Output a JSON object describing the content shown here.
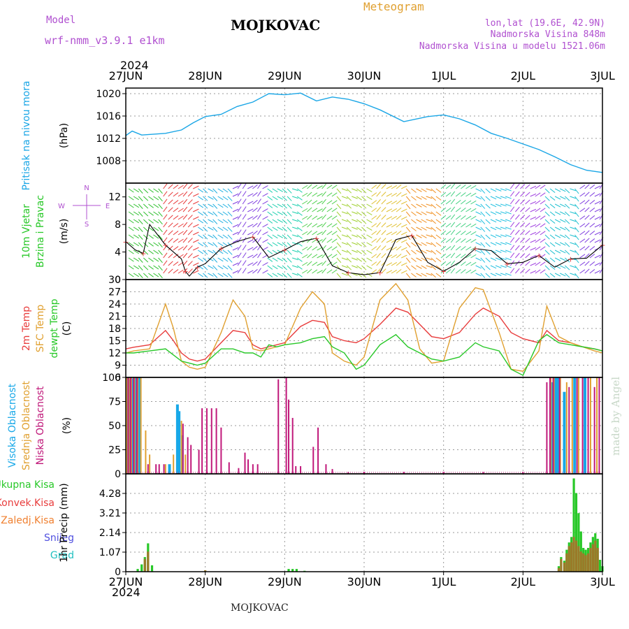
{
  "header": {
    "model_label": "Model",
    "model_value": "wrf-nmm_v3.9.1 e1km",
    "station": "MOJKOVAC",
    "title": "Meteogram",
    "coords": "lon,lat (19.6E, 42.9N)",
    "elevation": "Nadmorska Visina 848m",
    "model_elevation": "Nadmorska Visina u modelu 1521.06m",
    "year": "2024",
    "footer_station": "MOJKOVAC",
    "credit": "made by Angel"
  },
  "colors": {
    "pressure": "#1aa6e6",
    "temp2m": "#e83c3c",
    "sfc": "#e0a030",
    "dewpt": "#28c828",
    "high_cloud": "#18a8e8",
    "mid_cloud": "#e0a030",
    "low_cloud": "#c0187a",
    "total_precip": "#28c828",
    "convective": "#e83c3c",
    "freezing": "#f08030",
    "snow": "#5050e0",
    "hail": "#20c0c0",
    "purple": "#b050d0"
  },
  "chart_data": [
    {
      "type": "line",
      "panel": "pressure",
      "xlabels": [
        "27JUN",
        "28JUN",
        "29JUN",
        "30JUN",
        "1JUL",
        "2JUL",
        "3JUL"
      ],
      "ylabel_lines": [
        "Pritisak na nivou mora",
        "(hPa)"
      ],
      "ylim": [
        1004,
        1021
      ],
      "yticks": [
        "1008",
        "1012",
        "1016",
        "1020"
      ],
      "ytick_values": [
        1008,
        1012,
        1016,
        1020
      ],
      "series": [
        {
          "x": [
            0,
            0.08,
            0.2,
            0.5,
            0.7,
            0.85,
            1.0,
            1.2,
            1.4,
            1.6,
            1.8,
            2.0,
            2.2,
            2.4,
            2.6,
            2.8,
            3.0,
            3.2,
            3.5,
            3.8,
            4.0,
            4.2,
            4.4,
            4.6,
            4.8,
            5.0,
            5.2,
            5.4,
            5.6,
            5.8,
            6.0
          ],
          "values": [
            1012.5,
            1013.3,
            1012.6,
            1012.9,
            1013.5,
            1014.8,
            1015.9,
            1016.3,
            1017.7,
            1018.5,
            1020.0,
            1019.8,
            1020.1,
            1018.7,
            1019.4,
            1019.0,
            1018.2,
            1017.1,
            1015.0,
            1015.9,
            1016.2,
            1015.5,
            1014.4,
            1012.9,
            1012.0,
            1011.0,
            1010.0,
            1008.7,
            1007.3,
            1006.3,
            1005.9
          ]
        }
      ]
    },
    {
      "type": "line",
      "panel": "wind",
      "ylabel_lines": [
        "10m Vjetar",
        "Brzina i Pravac",
        "(m/s)"
      ],
      "compass": [
        "N",
        "E",
        "S",
        "W"
      ],
      "ylim": [
        0,
        14
      ],
      "yticks": [
        "0",
        "4",
        "8",
        "12"
      ],
      "ytick_values": [
        0,
        4,
        8,
        12
      ],
      "wind_colors": [
        "#30c030",
        "#e83c3c",
        "#20b0e0",
        "#8040e0",
        "#20d0b0",
        "#50d050",
        "#a0d030",
        "#e0c030",
        "#f09020",
        "#40d080",
        "#20c0e0",
        "#a040e0",
        "#20c0d0",
        "#8040e0"
      ],
      "series": [
        {
          "name": "speed",
          "values_x": [
            0,
            0.12,
            0.22,
            0.3,
            0.5,
            0.7,
            0.75,
            0.8,
            0.9,
            1.0,
            1.2,
            1.4,
            1.6,
            1.8,
            2.0,
            2.2,
            2.4,
            2.6,
            2.8,
            3.0,
            3.2,
            3.4,
            3.6,
            3.8,
            4.0,
            4.2,
            4.4,
            4.6,
            4.8,
            5.0,
            5.2,
            5.4,
            5.6,
            5.8,
            6.0
          ],
          "values": [
            5.5,
            4.3,
            3.8,
            8.0,
            5.0,
            3.0,
            1.2,
            0.5,
            1.8,
            2.3,
            4.5,
            5.5,
            6.2,
            3.2,
            4.3,
            5.5,
            6.0,
            2.0,
            1.0,
            0.7,
            1.0,
            5.8,
            6.4,
            2.5,
            1.2,
            2.5,
            4.5,
            4.2,
            2.3,
            2.5,
            3.5,
            1.8,
            3.0,
            3.1,
            5.0
          ]
        }
      ]
    },
    {
      "type": "line",
      "panel": "temperature",
      "ylabel_lines": [
        "2m Temp",
        "SFC Temp",
        "dewpt Temp",
        "(C)"
      ],
      "ylim": [
        6,
        30
      ],
      "yticks": [
        "6",
        "9",
        "12",
        "15",
        "18",
        "21",
        "24",
        "27",
        "30"
      ],
      "ytick_values": [
        6,
        9,
        12,
        15,
        18,
        21,
        24,
        27,
        30
      ],
      "x": [
        0,
        0.1,
        0.3,
        0.5,
        0.6,
        0.7,
        0.8,
        0.9,
        1.0,
        1.2,
        1.35,
        1.5,
        1.6,
        1.7,
        1.8,
        1.9,
        2.0,
        2.2,
        2.35,
        2.5,
        2.6,
        2.75,
        2.9,
        3.0,
        3.2,
        3.4,
        3.55,
        3.7,
        3.85,
        4.0,
        4.2,
        4.4,
        4.5,
        4.7,
        4.85,
        5.0,
        5.2,
        5.3,
        5.45,
        5.6,
        5.75,
        5.9,
        6.0
      ],
      "series": [
        {
          "name": "2m",
          "values": [
            13,
            13.4,
            14,
            17.5,
            15,
            12,
            10.5,
            10,
            10.5,
            14.5,
            17.5,
            17,
            14,
            13,
            13.5,
            14,
            14.5,
            18.5,
            20,
            19.5,
            16,
            15,
            14.5,
            15.5,
            19,
            23,
            22,
            19,
            16,
            15.5,
            17,
            21.5,
            23,
            21,
            17,
            15.5,
            14.5,
            17.5,
            15,
            14.5,
            13.5,
            13,
            12.5
          ]
        },
        {
          "name": "sfc",
          "values": [
            12,
            12.5,
            13,
            24,
            18,
            10,
            8.5,
            8,
            8.5,
            17,
            25,
            21,
            13,
            12.5,
            13,
            13.5,
            14,
            23,
            27,
            24,
            12,
            10,
            9,
            11,
            25,
            29,
            25,
            13,
            9.5,
            10,
            23,
            28,
            27.5,
            17,
            8,
            7.5,
            12.5,
            23.5,
            16,
            14.5,
            13.5,
            12.5,
            12
          ]
        },
        {
          "name": "dewpt",
          "values": [
            12,
            12,
            12.5,
            13,
            11.5,
            10,
            9.5,
            9,
            9.5,
            13,
            13,
            12,
            12,
            11,
            14,
            13.5,
            14,
            14.5,
            15.5,
            16,
            13.5,
            12,
            8,
            9,
            14,
            16.5,
            13.5,
            12,
            10.5,
            10,
            11,
            14.5,
            13.5,
            12.5,
            8,
            6.5,
            15,
            16.5,
            14.5,
            14,
            13.5,
            13,
            12.5
          ]
        }
      ]
    },
    {
      "type": "bar",
      "panel": "cloud",
      "ylabel_lines": [
        "Visoka Oblacnost",
        "Srednja Oblacnost",
        "Niska Oblacnost",
        "(%)"
      ],
      "ylim": [
        0,
        100
      ],
      "yticks": [
        "0",
        "25",
        "50",
        "75",
        "100"
      ],
      "ytick_values": [
        0,
        25,
        50,
        75,
        100
      ],
      "series": [
        {
          "name": "high",
          "x": [
            0.02,
            0.05,
            0.09,
            0.13,
            0.17,
            0.55,
            0.65,
            0.67,
            0.71,
            5.37,
            5.41,
            5.44,
            5.52,
            5.65,
            5.78
          ],
          "values": [
            100,
            98,
            99,
            100,
            100,
            10,
            72,
            65,
            40,
            95,
            100,
            100,
            85,
            100,
            100
          ]
        },
        {
          "name": "mid",
          "x": [
            0.01,
            0.04,
            0.07,
            0.11,
            0.15,
            0.19,
            0.25,
            0.3,
            0.5,
            0.6,
            0.7,
            0.75,
            5.35,
            5.39,
            5.47,
            5.55,
            5.62,
            5.7,
            5.85,
            5.93
          ],
          "values": [
            100,
            100,
            100,
            100,
            100,
            100,
            45,
            20,
            10,
            20,
            55,
            20,
            100,
            100,
            100,
            95,
            100,
            100,
            100,
            100
          ]
        },
        {
          "name": "low",
          "x": [
            0.03,
            0.06,
            0.1,
            0.14,
            0.28,
            0.38,
            0.42,
            0.48,
            0.72,
            0.78,
            0.82,
            0.92,
            0.96,
            1.02,
            1.08,
            1.14,
            1.2,
            1.3,
            1.42,
            1.5,
            1.54,
            1.6,
            1.66,
            1.92,
            2.02,
            2.05,
            2.1,
            2.14,
            2.2,
            2.36,
            2.42,
            2.52,
            2.6,
            2.8,
            3.0,
            3.5,
            4.0,
            4.5,
            5.0,
            5.3,
            5.34,
            5.38,
            5.46,
            5.58,
            5.68,
            5.75,
            5.82,
            5.9,
            5.96
          ],
          "values": [
            100,
            100,
            100,
            100,
            10,
            10,
            10,
            10,
            52,
            38,
            30,
            25,
            68,
            68,
            68,
            68,
            48,
            12,
            6,
            22,
            15,
            10,
            10,
            98,
            100,
            77,
            58,
            8,
            8,
            28,
            48,
            10,
            5,
            2,
            2,
            2,
            2,
            2,
            2,
            95,
            100,
            100,
            100,
            90,
            100,
            100,
            100,
            90,
            100
          ]
        }
      ]
    },
    {
      "type": "bar",
      "panel": "precip",
      "ylabel_lines": [
        "1hr Precip (mm)"
      ],
      "legend": [
        "Ukupna Kisa",
        "Konvek.Kisa",
        "Zaledj.Kisa",
        "Snijeg",
        "Grad"
      ],
      "ylim": [
        0,
        5.35
      ],
      "yticks": [
        "0",
        "1.07",
        "2.14",
        "3.21",
        "4.28"
      ],
      "ytick_values": [
        0,
        1.07,
        2.14,
        3.21,
        4.28
      ],
      "series": [
        {
          "name": "total",
          "x": [
            0.15,
            0.2,
            0.24,
            0.28,
            0.33,
            2.05,
            2.1,
            2.15,
            2.25,
            5.45,
            5.48,
            5.52,
            5.55,
            5.58,
            5.61,
            5.64,
            5.67,
            5.7,
            5.73,
            5.76,
            5.79,
            5.82,
            5.85,
            5.88,
            5.91,
            5.94,
            5.97,
            6.0
          ],
          "values": [
            0.15,
            0.4,
            0.8,
            1.55,
            0.35,
            0.15,
            0.15,
            0.15,
            0.05,
            0.3,
            0.8,
            0.6,
            1.2,
            1.6,
            1.9,
            5.1,
            4.3,
            3.2,
            2.2,
            1.3,
            1.2,
            1.3,
            1.6,
            1.9,
            2.1,
            1.8,
            0.65,
            0.3
          ]
        },
        {
          "name": "convective",
          "x": [
            0.24,
            0.28,
            1.0,
            5.45,
            5.48,
            5.52,
            5.55,
            5.58,
            5.61,
            5.64,
            5.67,
            5.7,
            5.73,
            5.76,
            5.79,
            5.82,
            5.85,
            5.88,
            5.91,
            5.94
          ],
          "values": [
            0.7,
            1.1,
            0.08,
            0.2,
            0.7,
            0.5,
            1.0,
            1.4,
            1.6,
            1.9,
            1.7,
            1.4,
            1.1,
            1.0,
            0.9,
            1.0,
            1.3,
            1.5,
            1.7,
            1.3
          ]
        }
      ]
    }
  ]
}
